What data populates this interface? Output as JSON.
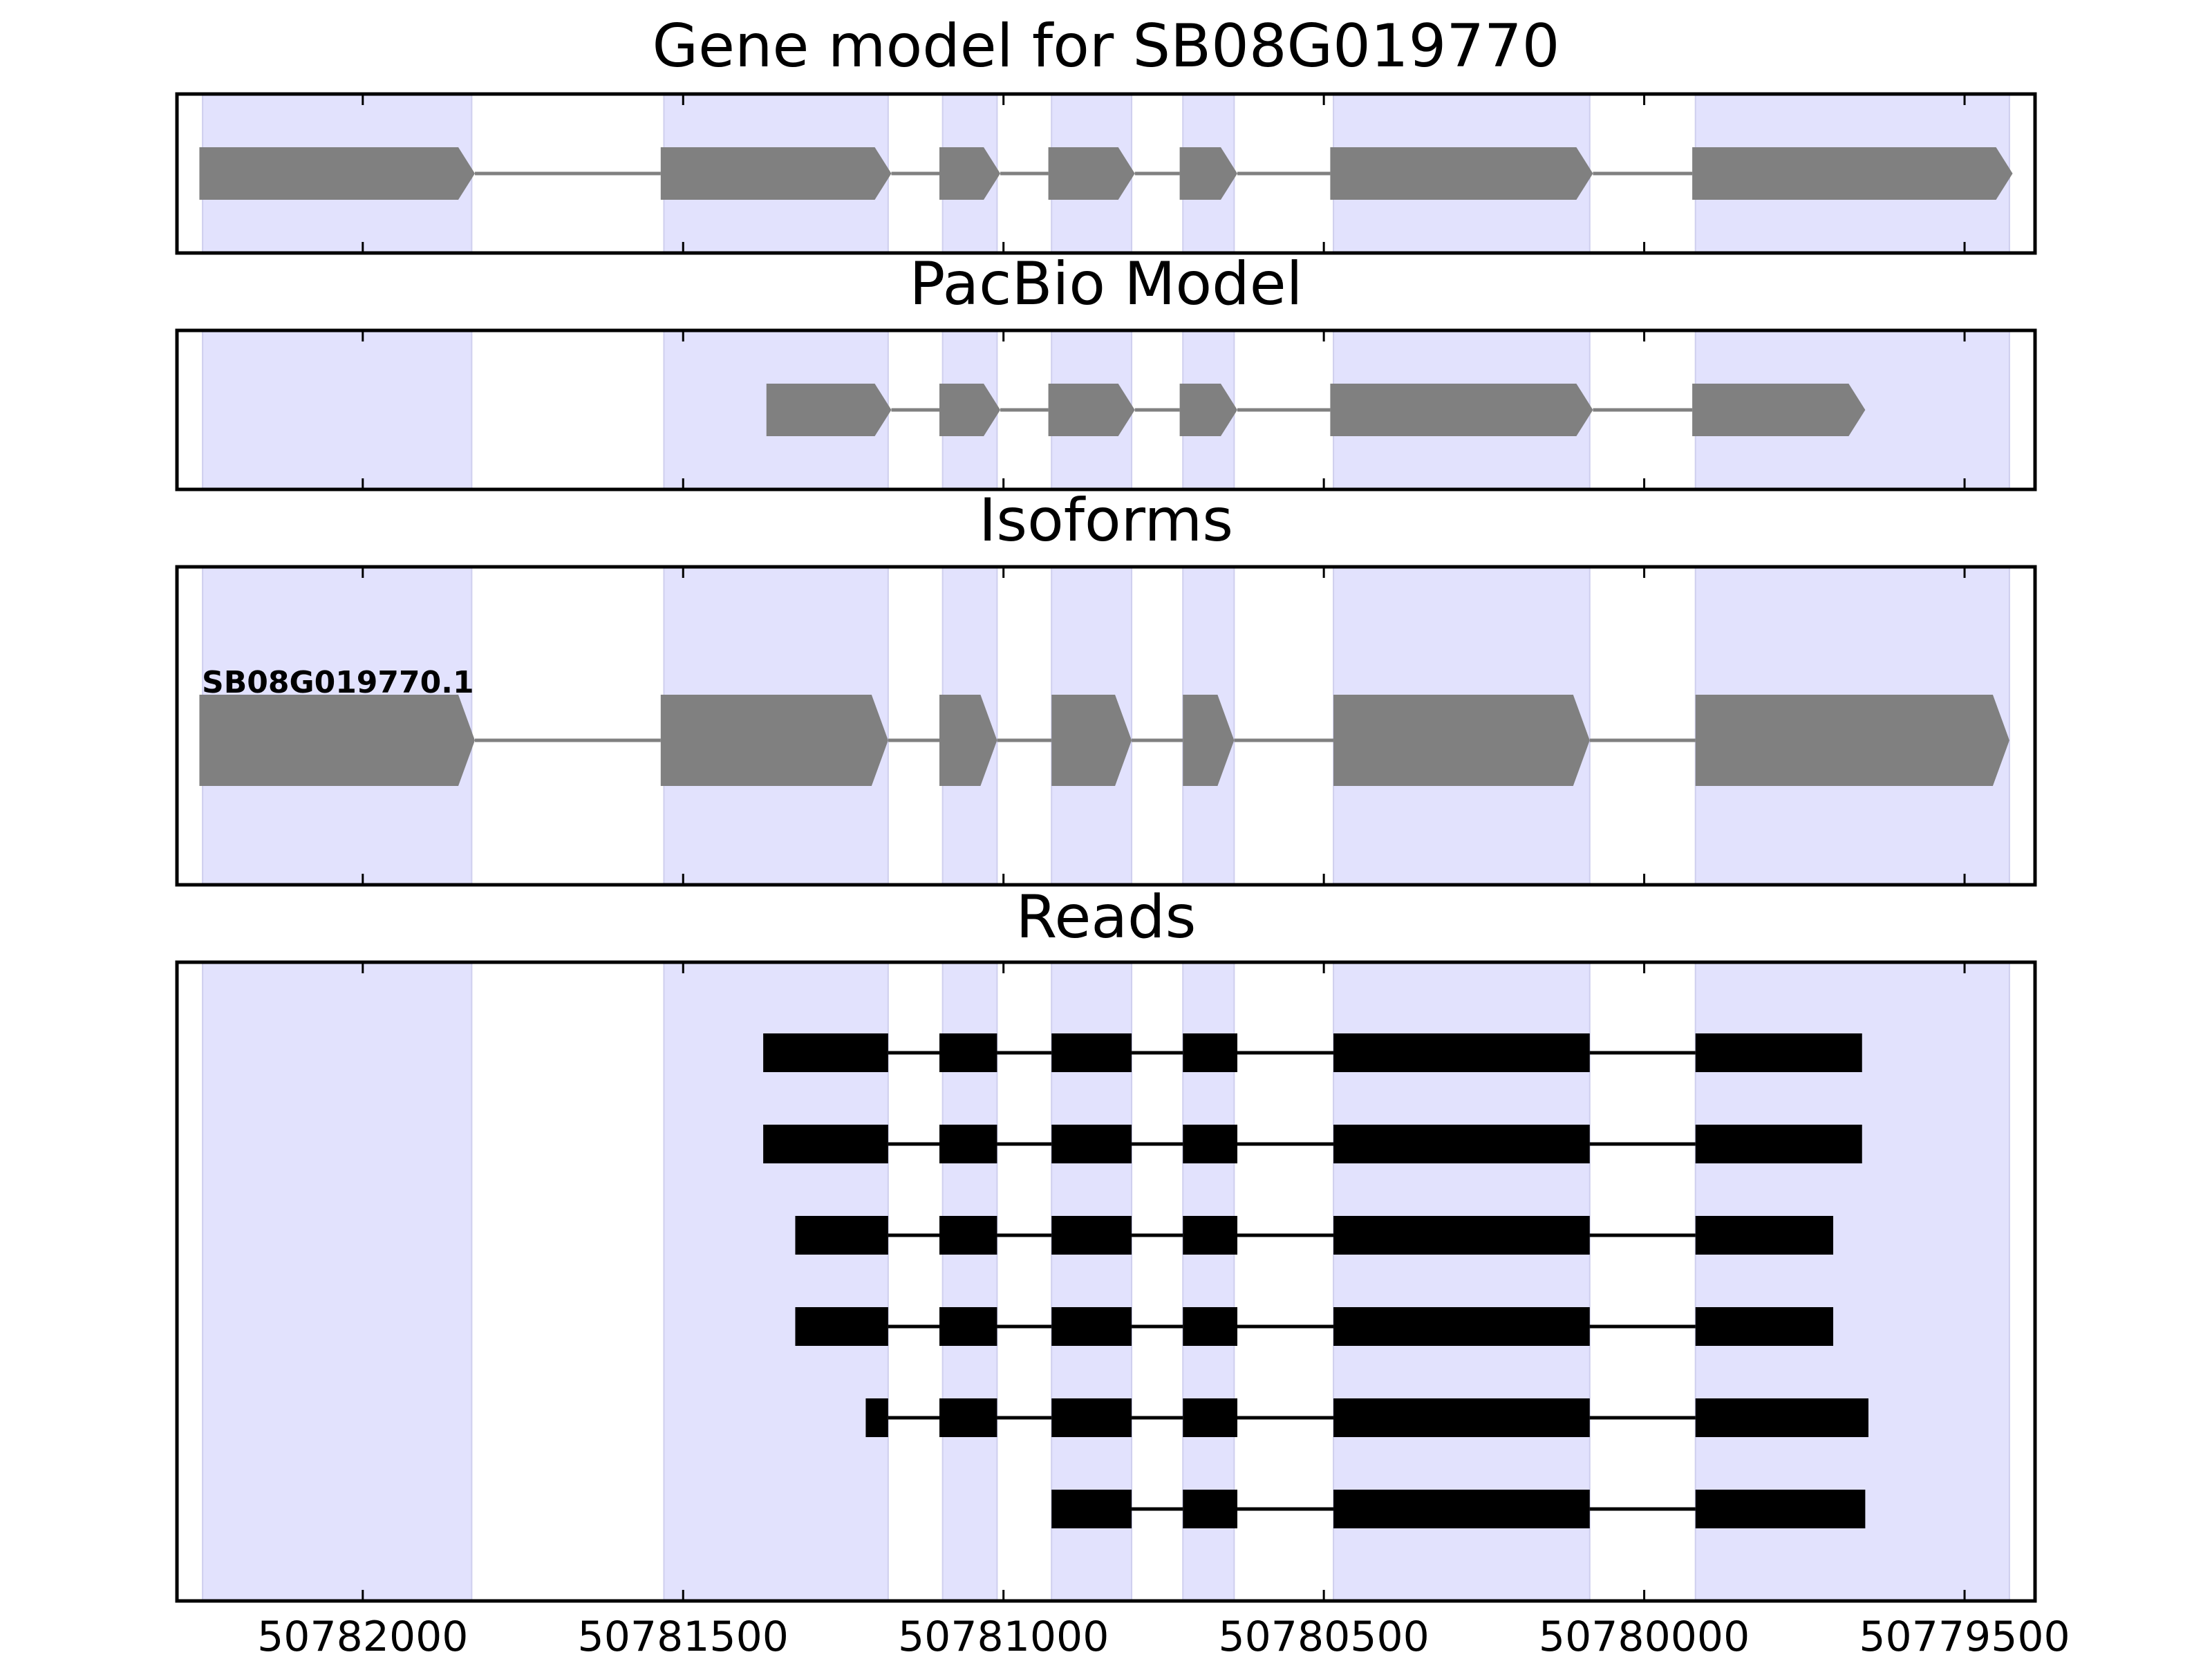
{
  "figure": {
    "panel_titles": [
      "Gene model for SB08G019770",
      "PacBio Model",
      "Isoforms",
      "Reads"
    ],
    "x_axis": {
      "ticks": [
        50782000,
        50781500,
        50781000,
        50780500,
        50780000,
        50779500
      ],
      "tick_labels": [
        "50782000",
        "50781500",
        "50781000",
        "50780500",
        "50780000",
        "50779500"
      ],
      "range": [
        50782290,
        50779390
      ],
      "reversed": true
    },
    "colors": {
      "exon_highlight": "#e2e2fd",
      "gene_feature": "#808080",
      "read_feature": "#000000",
      "frame": "#000000"
    }
  },
  "chart_data": {
    "type": "gene_structure",
    "xlabel": "",
    "ylabel": "",
    "xlim": [
      50782290,
      50779390
    ],
    "highlight_regions": [
      [
        50782250,
        50781830
      ],
      [
        50781530,
        50781180
      ],
      [
        50781095,
        50781010
      ],
      [
        50780925,
        50780800
      ],
      [
        50780720,
        50780640
      ],
      [
        50780485,
        50780085
      ],
      [
        50779920,
        50779430
      ]
    ],
    "gene_model": {
      "label": "",
      "exons": [
        [
          50782255,
          50781825
        ],
        [
          50781535,
          50781175
        ],
        [
          50781100,
          50781005
        ],
        [
          50780930,
          50780795
        ],
        [
          50780725,
          50780635
        ],
        [
          50780490,
          50780080
        ],
        [
          50779925,
          50779425
        ]
      ]
    },
    "pacbio_model": {
      "label": "",
      "exons": [
        [
          50781370,
          50781175
        ],
        [
          50781100,
          50781005
        ],
        [
          50780930,
          50780795
        ],
        [
          50780725,
          50780635
        ],
        [
          50780490,
          50780080
        ],
        [
          50779925,
          50779655
        ]
      ]
    },
    "isoforms": [
      {
        "label": "SB08G019770.1",
        "exons": [
          [
            50782255,
            50781825
          ],
          [
            50781535,
            50781180
          ],
          [
            50781100,
            50781010
          ],
          [
            50780925,
            50780800
          ],
          [
            50780720,
            50780640
          ],
          [
            50780485,
            50780085
          ],
          [
            50779920,
            50779430
          ]
        ]
      }
    ],
    "reads": [
      {
        "exons": [
          [
            50781375,
            50781180
          ],
          [
            50781100,
            50781010
          ],
          [
            50780925,
            50780800
          ],
          [
            50780720,
            50780635
          ],
          [
            50780485,
            50780085
          ],
          [
            50779920,
            50779660
          ]
        ]
      },
      {
        "exons": [
          [
            50781375,
            50781180
          ],
          [
            50781100,
            50781010
          ],
          [
            50780925,
            50780800
          ],
          [
            50780720,
            50780635
          ],
          [
            50780485,
            50780085
          ],
          [
            50779920,
            50779660
          ]
        ]
      },
      {
        "exons": [
          [
            50781325,
            50781180
          ],
          [
            50781100,
            50781010
          ],
          [
            50780925,
            50780800
          ],
          [
            50780720,
            50780635
          ],
          [
            50780485,
            50780085
          ],
          [
            50779920,
            50779705
          ]
        ]
      },
      {
        "exons": [
          [
            50781325,
            50781180
          ],
          [
            50781100,
            50781010
          ],
          [
            50780925,
            50780800
          ],
          [
            50780720,
            50780635
          ],
          [
            50780485,
            50780085
          ],
          [
            50779920,
            50779705
          ]
        ]
      },
      {
        "exons": [
          [
            50781215,
            50781180
          ],
          [
            50781100,
            50781010
          ],
          [
            50780925,
            50780800
          ],
          [
            50780720,
            50780635
          ],
          [
            50780485,
            50780085
          ],
          [
            50779920,
            50779650
          ]
        ]
      },
      {
        "exons": [
          [
            50780925,
            50780800
          ],
          [
            50780720,
            50780635
          ],
          [
            50780485,
            50780085
          ],
          [
            50779920,
            50779655
          ]
        ]
      }
    ]
  }
}
